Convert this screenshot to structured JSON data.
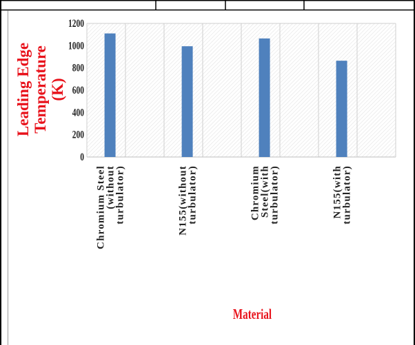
{
  "chart_data": {
    "type": "bar",
    "categories": [
      [
        "Chromium Steel",
        "(without",
        "turbulator)"
      ],
      [
        "N155(without",
        "turbulator)"
      ],
      [
        "Chromium",
        "Steel(with",
        "turbulator)"
      ],
      [
        "N155(with",
        "turbulator)"
      ]
    ],
    "values": [
      1110,
      995,
      1065,
      865
    ],
    "ylim": [
      0,
      1200
    ],
    "yticks": [
      0,
      200,
      400,
      600,
      800,
      1000,
      1200
    ],
    "ylabel": [
      "Leading Edge",
      "Temperature",
      "(K)"
    ],
    "xlabel": "Material",
    "grid": "hatched plot area with vertical gridlines",
    "legend": "none"
  },
  "colors": {
    "bar": "#4f81bd",
    "axis_label": "#e8121b",
    "text": "#222222",
    "grid": "#cfcfcf",
    "hatch": "#e4e4e4",
    "frame": "#000000"
  }
}
